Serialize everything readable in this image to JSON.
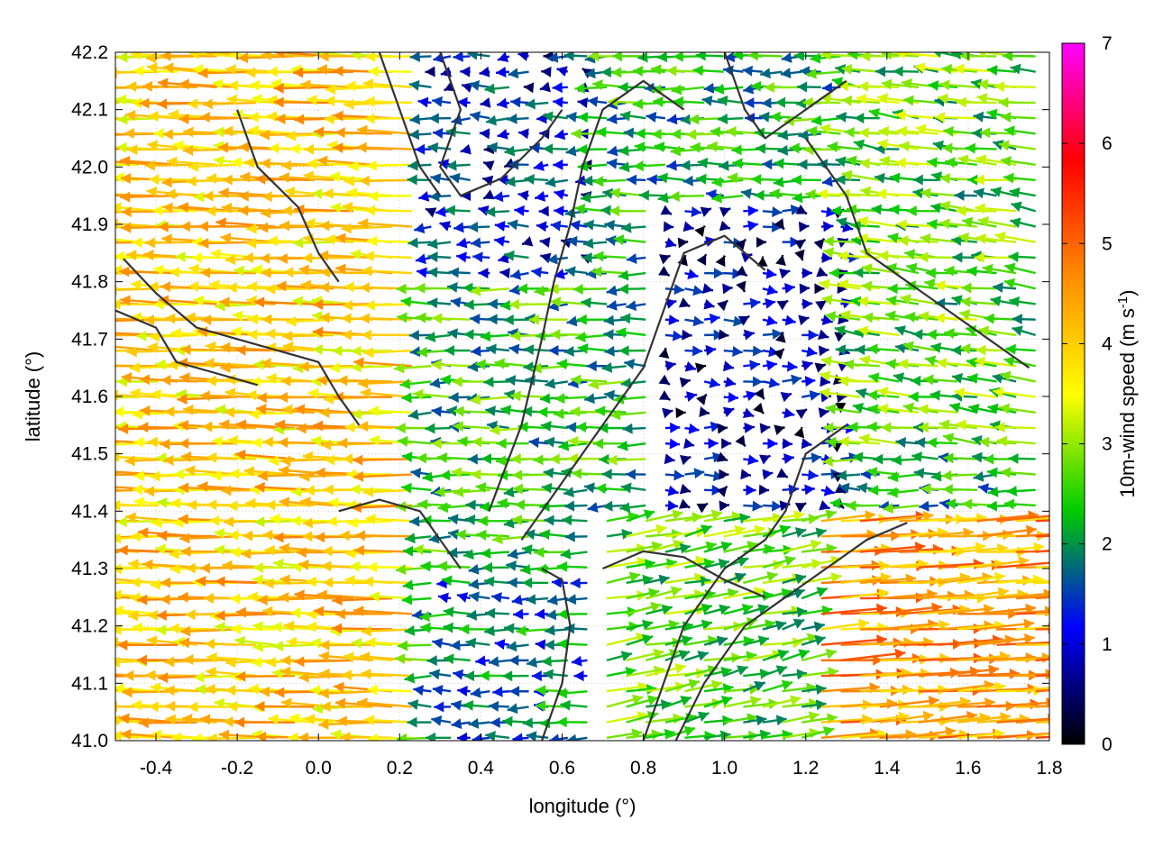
{
  "chart_data": {
    "type": "vector-field",
    "title": "",
    "xlabel": "longitude (°)",
    "ylabel": "latitude (°)",
    "xlim": [
      -0.5,
      1.8
    ],
    "ylim": [
      41.0,
      42.2
    ],
    "xticks": [
      -0.4,
      -0.2,
      0.0,
      0.2,
      0.4,
      0.6,
      0.8,
      1.0,
      1.2,
      1.4,
      1.6,
      1.8
    ],
    "xtick_labels": [
      "-0.4",
      "-0.2",
      "0.0",
      "0.2",
      "0.4",
      "0.6",
      "0.8",
      "1.0",
      "1.2",
      "1.4",
      "1.6",
      "1.8"
    ],
    "yticks": [
      41.0,
      41.1,
      41.2,
      41.3,
      41.4,
      41.5,
      41.6,
      41.7,
      41.8,
      41.9,
      42.0,
      42.1,
      42.2
    ],
    "ytick_labels": [
      "41.0",
      "41.1",
      "41.2",
      "41.3",
      "41.4",
      "41.5",
      "41.6",
      "41.7",
      "41.8",
      "41.9",
      "42.0",
      "42.1",
      "42.2"
    ],
    "grid": true,
    "colorbar": {
      "label": "10m-wind speed (m s",
      "label_superscript": "-1",
      "label_close": ")",
      "range": [
        0,
        7
      ],
      "ticks": [
        0,
        1,
        2,
        3,
        4,
        5,
        6,
        7
      ],
      "tick_labels": [
        "0",
        "1",
        "2",
        "3",
        "4",
        "5",
        "6",
        "7"
      ],
      "colormap": [
        "#000000",
        "#0000ff",
        "#00cc00",
        "#ffff00",
        "#ff8c00",
        "#ff0000",
        "#ff00ff"
      ]
    },
    "wind_regions": [
      {
        "lon": [
          -0.5,
          0.25
        ],
        "lat": [
          41.0,
          42.2
        ],
        "u": -4.0,
        "v": 0.1
      },
      {
        "lon": [
          0.25,
          0.7
        ],
        "lat": [
          41.8,
          42.2
        ],
        "u": -1.2,
        "v": 0.0
      },
      {
        "lon": [
          0.25,
          0.9
        ],
        "lat": [
          41.3,
          41.8
        ],
        "u": -2.3,
        "v": 0.0
      },
      {
        "lon": [
          0.85,
          1.3
        ],
        "lat": [
          41.4,
          41.95
        ],
        "u": 0.8,
        "v": 0.0
      },
      {
        "lon": [
          1.3,
          1.8
        ],
        "lat": [
          41.5,
          42.2
        ],
        "u": -2.6,
        "v": 0.3
      },
      {
        "lon": [
          1.2,
          1.8
        ],
        "lat": [
          41.0,
          41.4
        ],
        "u": 4.5,
        "v": 0.3
      },
      {
        "lon": [
          0.7,
          1.2
        ],
        "lat": [
          41.0,
          41.4
        ],
        "u": 2.5,
        "v": 0.5
      },
      {
        "lon": [
          0.3,
          0.7
        ],
        "lat": [
          41.0,
          41.3
        ],
        "u": -1.8,
        "v": 0.0
      }
    ],
    "contours": [
      [
        [
          -0.48,
          41.84
        ],
        [
          -0.4,
          41.78
        ],
        [
          -0.3,
          41.72
        ],
        [
          -0.2,
          41.7
        ],
        [
          -0.1,
          41.68
        ],
        [
          0.0,
          41.66
        ],
        [
          0.05,
          41.6
        ],
        [
          0.1,
          41.55
        ]
      ],
      [
        [
          -0.5,
          41.75
        ],
        [
          -0.4,
          41.72
        ],
        [
          -0.35,
          41.66
        ],
        [
          -0.25,
          41.64
        ],
        [
          -0.15,
          41.62
        ]
      ],
      [
        [
          -0.2,
          42.1
        ],
        [
          -0.15,
          42.0
        ],
        [
          -0.05,
          41.93
        ],
        [
          0.0,
          41.85
        ],
        [
          0.05,
          41.8
        ]
      ],
      [
        [
          0.3,
          42.2
        ],
        [
          0.35,
          42.1
        ],
        [
          0.3,
          42.0
        ],
        [
          0.35,
          41.95
        ],
        [
          0.45,
          41.98
        ],
        [
          0.55,
          42.05
        ],
        [
          0.6,
          42.1
        ]
      ],
      [
        [
          0.42,
          41.4
        ],
        [
          0.5,
          41.55
        ],
        [
          0.55,
          41.7
        ],
        [
          0.58,
          41.8
        ],
        [
          0.62,
          41.9
        ],
        [
          0.65,
          42.0
        ],
        [
          0.7,
          42.1
        ],
        [
          0.8,
          42.15
        ],
        [
          0.9,
          42.1
        ]
      ],
      [
        [
          0.5,
          41.35
        ],
        [
          0.6,
          41.45
        ],
        [
          0.7,
          41.55
        ],
        [
          0.8,
          41.65
        ],
        [
          0.85,
          41.75
        ],
        [
          0.9,
          41.85
        ],
        [
          1.0,
          41.88
        ],
        [
          1.1,
          41.82
        ]
      ],
      [
        [
          0.8,
          41.0
        ],
        [
          0.85,
          41.1
        ],
        [
          0.9,
          41.2
        ],
        [
          1.0,
          41.3
        ],
        [
          1.1,
          41.35
        ],
        [
          1.15,
          41.4
        ],
        [
          1.2,
          41.5
        ],
        [
          1.3,
          41.55
        ]
      ],
      [
        [
          0.88,
          41.0
        ],
        [
          0.95,
          41.1
        ],
        [
          1.05,
          41.2
        ],
        [
          1.15,
          41.25
        ],
        [
          1.25,
          41.3
        ],
        [
          1.35,
          41.35
        ],
        [
          1.45,
          41.38
        ]
      ],
      [
        [
          1.2,
          42.05
        ],
        [
          1.3,
          41.95
        ],
        [
          1.35,
          41.85
        ],
        [
          1.45,
          41.8
        ],
        [
          1.55,
          41.75
        ],
        [
          1.65,
          41.7
        ],
        [
          1.75,
          41.65
        ]
      ],
      [
        [
          0.7,
          41.3
        ],
        [
          0.8,
          41.33
        ],
        [
          0.9,
          41.32
        ],
        [
          1.0,
          41.28
        ],
        [
          1.1,
          41.25
        ]
      ],
      [
        [
          0.55,
          41.0
        ],
        [
          0.6,
          41.1
        ],
        [
          0.62,
          41.2
        ],
        [
          0.6,
          41.28
        ],
        [
          0.55,
          41.3
        ]
      ],
      [
        [
          0.05,
          41.4
        ],
        [
          0.15,
          41.42
        ],
        [
          0.25,
          41.4
        ],
        [
          0.3,
          41.35
        ],
        [
          0.35,
          41.3
        ]
      ],
      [
        [
          0.15,
          42.2
        ],
        [
          0.2,
          42.1
        ],
        [
          0.25,
          42.0
        ],
        [
          0.3,
          41.95
        ]
      ],
      [
        [
          1.0,
          42.2
        ],
        [
          1.05,
          42.1
        ],
        [
          1.1,
          42.05
        ],
        [
          1.2,
          42.1
        ],
        [
          1.3,
          42.15
        ]
      ]
    ]
  }
}
